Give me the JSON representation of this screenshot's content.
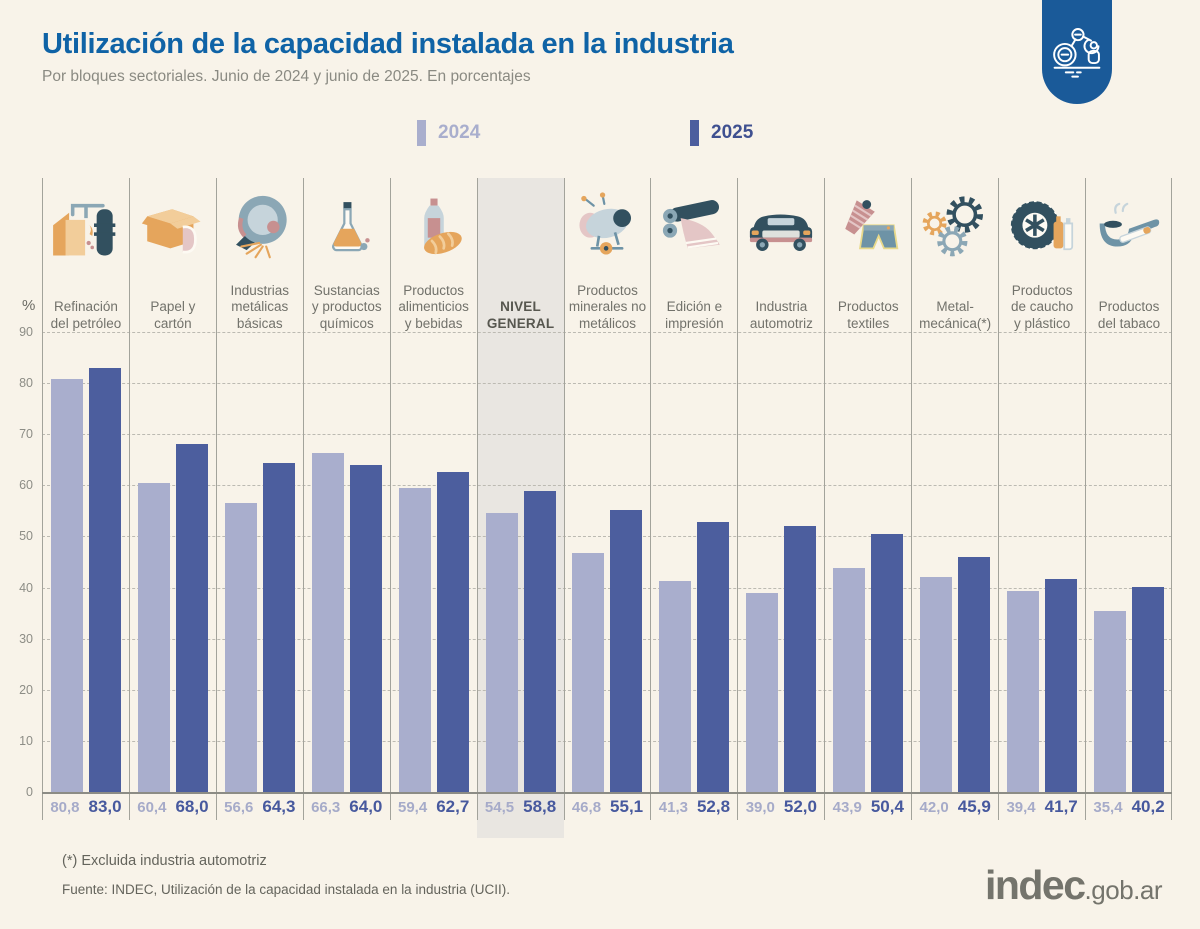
{
  "header": {
    "title": "Utilización de la capacidad instalada en la industria",
    "subtitle": "Por bloques sectoriales. Junio de 2024 y junio de 2025. En porcentajes"
  },
  "badge": {
    "icon": "robot-arm-icon",
    "color": "#1a5a99"
  },
  "legend": [
    {
      "label": "2024",
      "color": "#a9aecd"
    },
    {
      "label": "2025",
      "color": "#4c5e9e"
    }
  ],
  "chart_data": {
    "type": "bar",
    "title": "Utilización de la capacidad instalada en la industria",
    "xlabel": "",
    "ylabel": "%",
    "ylim": [
      0,
      90
    ],
    "yticks": [
      0,
      10,
      20,
      30,
      40,
      50,
      60,
      70,
      80,
      90
    ],
    "grid": "horizontal dashed",
    "legend_position": "top",
    "decimal_separator": ",",
    "categories": [
      "Refinación\ndel petróleo",
      "Papel y\ncartón",
      "Industrias\nmetálicas\nbásicas",
      "Sustancias\ny productos\nquímicos",
      "Productos\nalimenticios\ny bebidas",
      "NIVEL\nGENERAL",
      "Productos\nminerales no\nmetálicos",
      "Edición e\nimpresión",
      "Industria\nautomotriz",
      "Productos\ntextiles",
      "Metal-\nmecánica(*)",
      "Productos\nde caucho\ny plástico",
      "Productos\ndel tabaco"
    ],
    "category_icons": [
      "oil-refinery-icon",
      "cardboard-box-icon",
      "metal-grinding-icon",
      "chemical-flask-icon",
      "food-beverage-icon",
      "",
      "cement-mixer-icon",
      "printing-press-icon",
      "car-icon",
      "textile-icon",
      "gears-icon",
      "tire-plastic-icon",
      "tobacco-pipe-icon"
    ],
    "highlight_index": 5,
    "highlight_color": "#e9e6e1",
    "series": [
      {
        "name": "2024",
        "color": "#a9aecd",
        "values": [
          80.8,
          60.4,
          56.6,
          66.3,
          59.4,
          54.5,
          46.8,
          41.3,
          39.0,
          43.9,
          42.0,
          39.4,
          35.4
        ]
      },
      {
        "name": "2025",
        "color": "#4c5e9e",
        "values": [
          83.0,
          68.0,
          64.3,
          64.0,
          62.7,
          58.8,
          55.1,
          52.8,
          52.0,
          50.4,
          45.9,
          41.7,
          40.2
        ]
      }
    ]
  },
  "footer": {
    "footnote": "(*) Excluida industria automotriz",
    "source": "Fuente: INDEC, Utilización de la capacidad instalada en la industria (UCII).",
    "logo_main": "indec",
    "logo_suffix": ".gob.ar"
  }
}
